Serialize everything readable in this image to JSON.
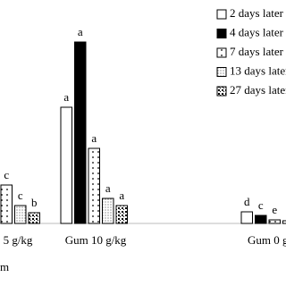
{
  "chart_data": {
    "type": "bar",
    "categories": [
      "5 g/kg",
      "Gum 10 g/kg",
      "Gum 0 g"
    ],
    "axis_fragment": "m",
    "ylim": [
      0,
      210
    ],
    "series": [
      {
        "name": "2 days later",
        "color": "#ffffff",
        "pattern": "none",
        "values": [
          null,
          130,
          13
        ],
        "letters": [
          null,
          "a",
          "d"
        ]
      },
      {
        "name": "4 days later",
        "color": "#000000",
        "pattern": "solid",
        "values": [
          null,
          203,
          9
        ],
        "letters": [
          null,
          "a",
          "c"
        ]
      },
      {
        "name": "7 days later",
        "color": "#ffffff",
        "pattern": "sparse-dots",
        "values": [
          43,
          84,
          4
        ],
        "letters": [
          "c",
          "a",
          "e"
        ]
      },
      {
        "name": "13 days later",
        "color": "#ffffff",
        "pattern": "dense-dots",
        "values": [
          20,
          28,
          3
        ],
        "letters": [
          "c",
          "a",
          null
        ]
      },
      {
        "name": "27 days later",
        "color": "#ffffff",
        "pattern": "checker",
        "values": [
          12,
          20,
          null
        ],
        "letters": [
          "b",
          "a",
          null
        ]
      }
    ]
  }
}
